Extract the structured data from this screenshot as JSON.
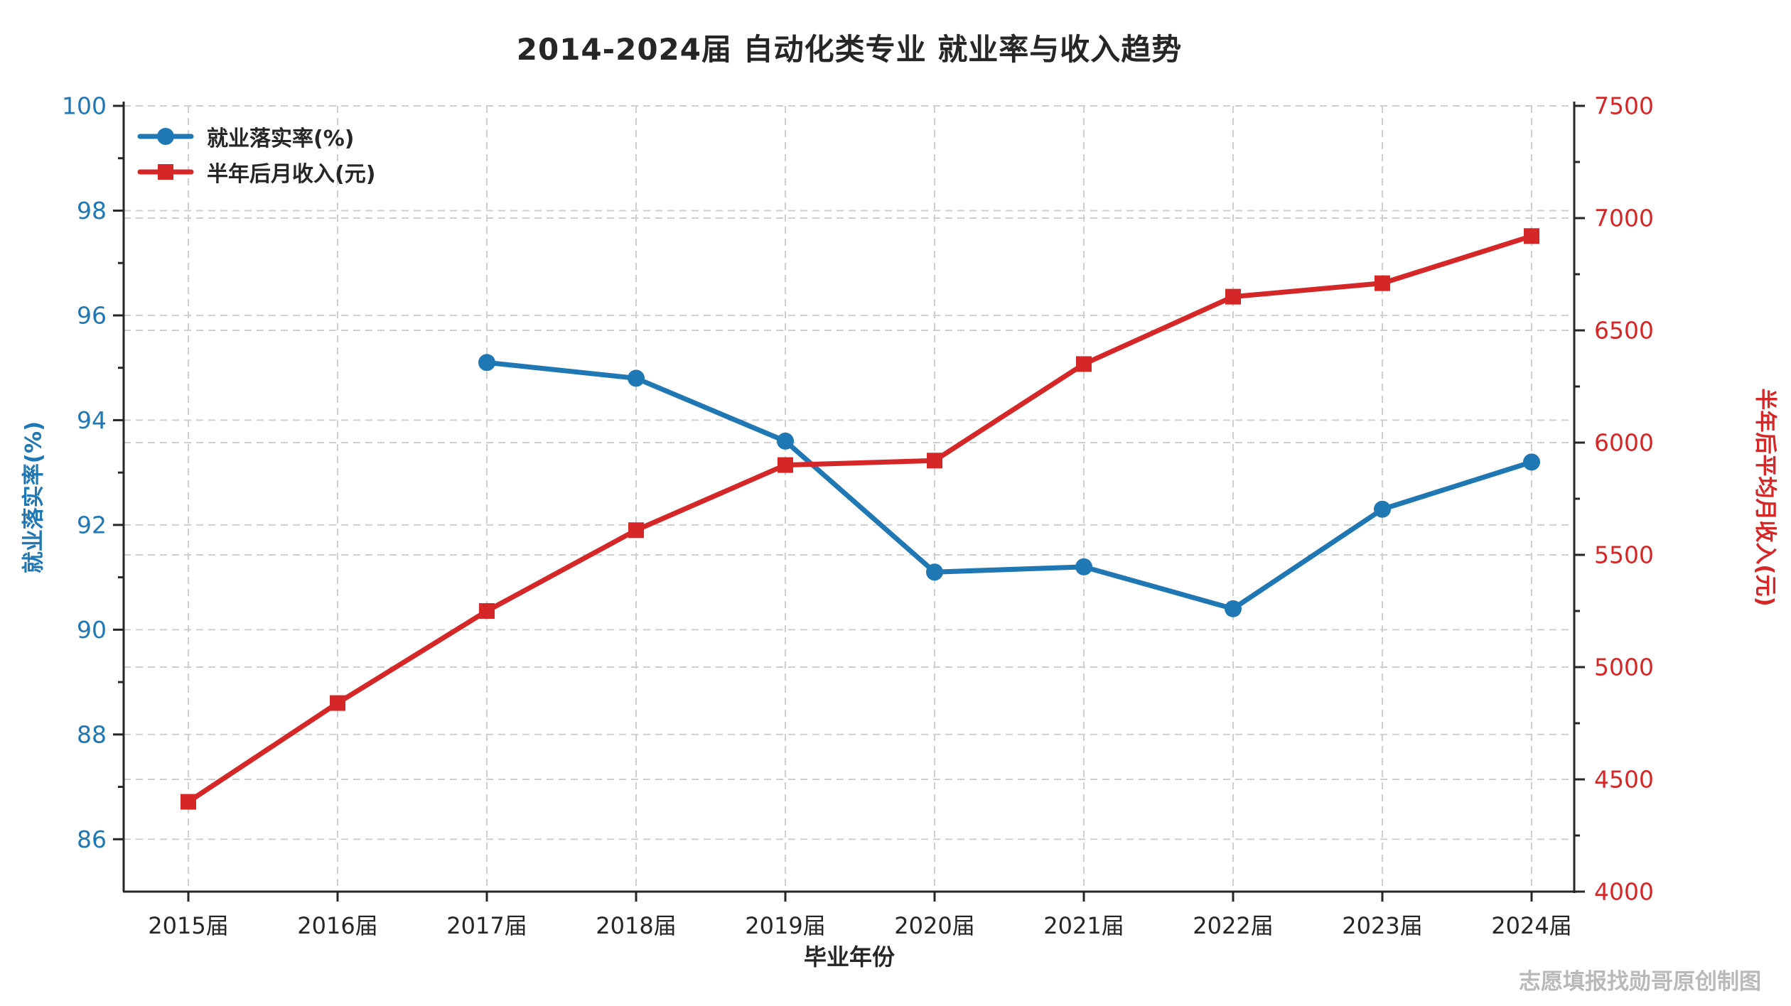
{
  "title": "2014-2024届 自动化类专业 就业率与收入趋势",
  "watermark": "志愿填报找勋哥原创制图",
  "colors": {
    "blue": "#1f77b4",
    "red": "#d62728",
    "grid": "#cfcfcf",
    "axis": "#262626",
    "watermark": "#b9b9b9"
  },
  "legend": {
    "items": [
      {
        "label": "就业落实率(%)",
        "color": "#1f77b4",
        "marker": "circle"
      },
      {
        "label": "半年后月收入(元)",
        "color": "#d62728",
        "marker": "square"
      }
    ]
  },
  "chart_data": {
    "type": "line",
    "title": "2014-2024届 自动化类专业 就业率与收入趋势",
    "categories": [
      "2015届",
      "2016届",
      "2017届",
      "2018届",
      "2019届",
      "2020届",
      "2021届",
      "2022届",
      "2023届",
      "2024届"
    ],
    "xlabel": "毕业年份",
    "grid": true,
    "legend_position": "upper left",
    "series": [
      {
        "name": "就业落实率(%)",
        "axis": "left",
        "color": "#1f77b4",
        "marker": "circle",
        "values": [
          null,
          null,
          95.1,
          94.8,
          93.6,
          91.1,
          91.2,
          90.4,
          92.3,
          93.2
        ]
      },
      {
        "name": "半年后月收入(元)",
        "axis": "right",
        "color": "#d62728",
        "marker": "square",
        "values": [
          4400,
          4840,
          5250,
          5610,
          5900,
          5920,
          6350,
          6650,
          6710,
          6920
        ]
      }
    ],
    "left_axis": {
      "label": "就业落实率(%)",
      "min": 85,
      "max": 100,
      "ticks": [
        86,
        88,
        90,
        92,
        94,
        96,
        98,
        100
      ],
      "color": "#1f77b4"
    },
    "right_axis": {
      "label": "半年后平均月收入(元)",
      "min": 4000,
      "max": 7500,
      "ticks": [
        4000,
        4500,
        5000,
        5500,
        6000,
        6500,
        7000,
        7500
      ],
      "color": "#d62728"
    }
  }
}
